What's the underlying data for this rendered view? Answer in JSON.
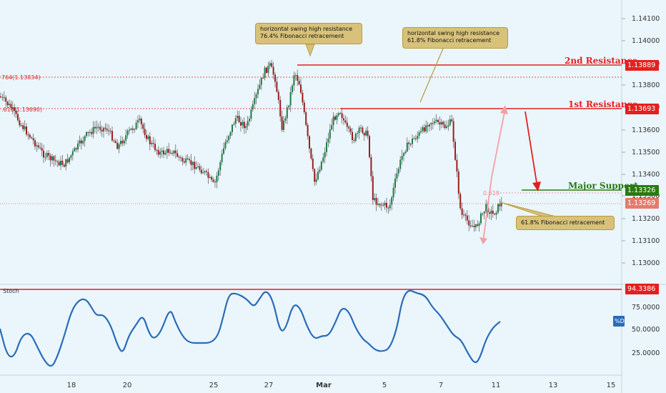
{
  "chart_data": {
    "type": "candlestick",
    "symbol_range": {
      "min": 1.1305,
      "max": 1.1416
    },
    "price_axis": {
      "ticks": [
        "1.14100",
        "1.14000",
        "1.13900",
        "1.13800",
        "1.13700",
        "1.13600",
        "1.13500",
        "1.13400",
        "1.13300",
        "1.13200",
        "1.13100",
        "1.13000"
      ]
    },
    "time_axis": {
      "labels": [
        "18",
        "20",
        "25",
        "27",
        "Mar",
        "5",
        "7",
        "11",
        "13",
        "15"
      ]
    },
    "levels": {
      "second_resistance": {
        "label": "2nd Resistance",
        "value": "1.13889",
        "color": "#e51f1f"
      },
      "first_resistance": {
        "label": "1st Resistance",
        "value": "1.13693",
        "color": "#e51f1f"
      },
      "major_support": {
        "label": "Major Support",
        "value": "1.13326",
        "color": "#2a7a10"
      },
      "current_price": {
        "value": "1.13269",
        "color": "#e57b6a"
      }
    },
    "fib_labels": {
      "f764": "764(1.13834)",
      "f618_left": ".618(1.13690)",
      "f618_right": "0.618"
    },
    "annotations": [
      {
        "text": [
          "horizontal swing high resistance",
          "76.4% Fibonacci retracement"
        ]
      },
      {
        "text": [
          "horizontal swing high resistance",
          "61.8% Fibonacci retracement"
        ]
      },
      {
        "text": [
          "61.8% Fibonacci retracement"
        ]
      }
    ],
    "stoch": {
      "title": "Stoch",
      "ticks": [
        "75.0000",
        "50.0000",
        "25.0000"
      ],
      "level": {
        "value": "94.3386",
        "color": "#e51f1f"
      },
      "series_label": "%D",
      "line_color": "#2a6bb8"
    },
    "colors": {
      "up": "#1e7b48",
      "down": "#9b1d20",
      "stoch": "#2a6bb8"
    }
  }
}
